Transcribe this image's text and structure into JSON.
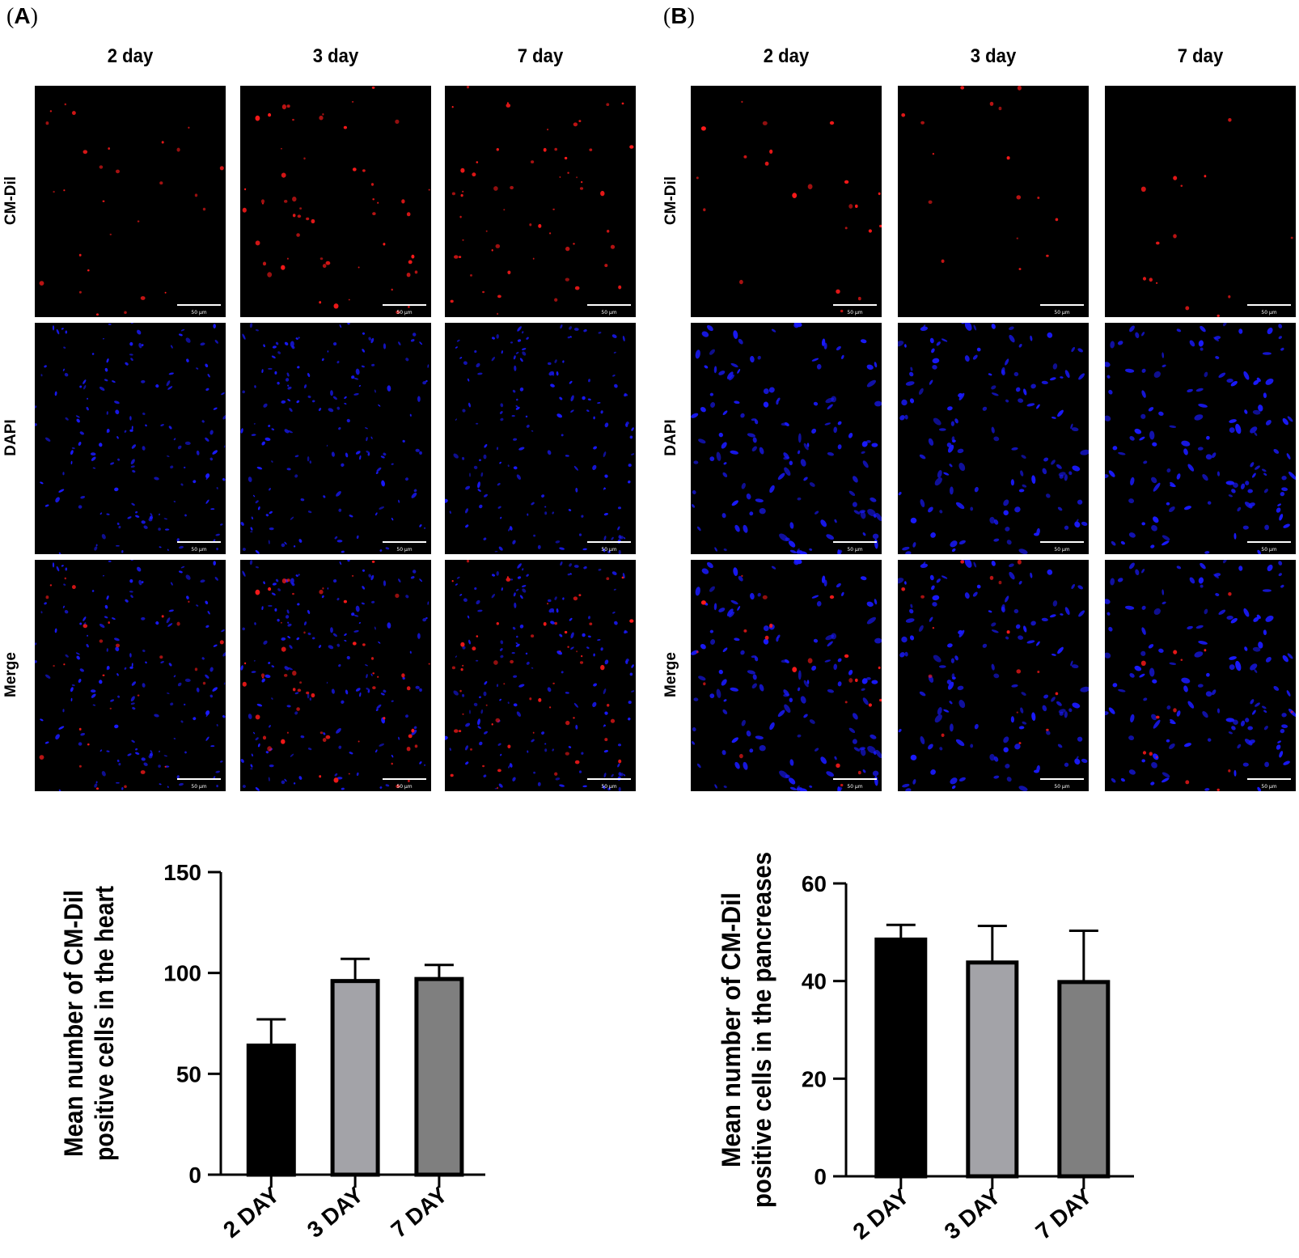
{
  "panels": [
    {
      "letter": "A",
      "column_headers": [
        "2 day",
        "3 day",
        "7 day"
      ],
      "row_labels": [
        "CM-Dil",
        "DAPI",
        "Merge"
      ],
      "scale_bar_label": "50 μm"
    },
    {
      "letter": "B",
      "column_headers": [
        "2 day",
        "3 day",
        "7 day"
      ],
      "row_labels": [
        "CM-Dil",
        "DAPI",
        "Merge"
      ],
      "scale_bar_label": "50 μm"
    }
  ],
  "colors": {
    "cm_dil": "#ff1a1a",
    "dapi": "#1a1aff",
    "bar_2day": "#000000",
    "bar_3day": "#a3a3a8",
    "bar_7day": "#7f7f7f"
  },
  "chart_data": [
    {
      "type": "bar",
      "title": "",
      "xlabel": "",
      "ylabel": "Mean number of CM-Dil positive cells in the heart",
      "ylabel_lines": [
        "Mean number of CM-Dil",
        "positive cells in the heart"
      ],
      "categories": [
        "2 DAY",
        "3 DAY",
        "7 DAY"
      ],
      "values": [
        64,
        96,
        97
      ],
      "error": [
        13,
        11,
        7
      ],
      "ylim": [
        0,
        150
      ],
      "yticks": [
        0,
        50,
        100,
        150
      ],
      "grid": false,
      "legend": "none"
    },
    {
      "type": "bar",
      "title": "",
      "xlabel": "",
      "ylabel": "Mean number of CM-Dil positive cells in the pancreases",
      "ylabel_lines": [
        "Mean number of CM-Dil",
        "positive cells in the pancreases"
      ],
      "categories": [
        "2 DAY",
        "3 DAY",
        "7 DAY"
      ],
      "values": [
        48.5,
        43.8,
        39.8
      ],
      "error": [
        3,
        7.5,
        10.5
      ],
      "ylim": [
        0,
        60
      ],
      "yticks": [
        0,
        20,
        40,
        60
      ],
      "grid": false,
      "legend": "none"
    }
  ]
}
